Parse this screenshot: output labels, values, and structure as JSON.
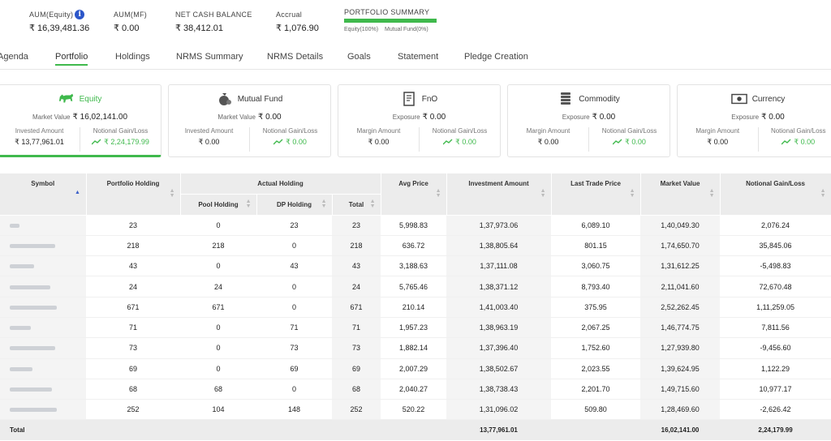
{
  "summary": {
    "aum_equity_label": "AUM(Equity)",
    "aum_equity_value": "₹ 16,39,481.36",
    "aum_mf_label": "AUM(MF)",
    "aum_mf_value": "₹ 0.00",
    "net_cash_label": "NET CASH BALANCE",
    "net_cash_value": "₹ 38,412.01",
    "accrual_label": "Accrual",
    "accrual_value": "₹ 1,076.90",
    "portfolio_summary_label": "PORTFOLIO SUMMARY",
    "equity_share_label": "Equity(100%)",
    "equity_share_pct": 100,
    "mf_share_label": "Mutual Fund(0%)"
  },
  "tabs": [
    "Agenda",
    "Portfolio",
    "Holdings",
    "NRMS Summary",
    "NRMS Details",
    "Goals",
    "Statement",
    "Pledge Creation"
  ],
  "active_tab": "Portfolio",
  "cards": [
    {
      "title": "Equity",
      "icon": "bull-icon",
      "main_label": "Market Value",
      "main_value": "₹ 16,02,141.00",
      "left_label": "Invested Amount",
      "left_value": "₹ 13,77,961.01",
      "right_label": "Notional Gain/Loss",
      "right_value": "₹ 2,24,179.99"
    },
    {
      "title": "Mutual Fund",
      "icon": "money-bag-icon",
      "main_label": "Market Value",
      "main_value": "₹ 0.00",
      "left_label": "Invested Amount",
      "left_value": "₹ 0.00",
      "right_label": "Notional Gain/Loss",
      "right_value": "₹ 0.00"
    },
    {
      "title": "FnO",
      "icon": "document-icon",
      "main_label": "Exposure",
      "main_value": "₹ 0.00",
      "left_label": "Margin Amount",
      "left_value": "₹ 0.00",
      "right_label": "Notional Gain/Loss",
      "right_value": "₹ 0.00"
    },
    {
      "title": "Commodity",
      "icon": "coin-stack-icon",
      "main_label": "Exposure",
      "main_value": "₹ 0.00",
      "left_label": "Margin Amount",
      "left_value": "₹ 0.00",
      "right_label": "Notional Gain/Loss",
      "right_value": "₹ 0.00"
    },
    {
      "title": "Currency",
      "icon": "banknote-icon",
      "main_label": "Exposure",
      "main_value": "₹ 0.00",
      "left_label": "Margin Amount",
      "left_value": "₹ 0.00",
      "right_label": "Notional Gain/Loss",
      "right_value": "₹ 0.00"
    }
  ],
  "table": {
    "headers": {
      "symbol": "Symbol",
      "portfolio_holding": "Portfolio Holding",
      "actual_holding": "Actual Holding",
      "pool_holding": "Pool Holding",
      "dp_holding": "DP Holding",
      "total": "Total",
      "avg_price": "Avg Price",
      "investment_amount": "Investment Amount",
      "last_trade_price": "Last Trade Price",
      "market_value": "Market Value",
      "notional_gain_loss": "Notional Gain/Loss"
    },
    "rows": [
      [
        "23",
        "0",
        "23",
        "23",
        "5,998.83",
        "1,37,973.06",
        "6,089.10",
        "1,40,049.30",
        "2,076.24"
      ],
      [
        "218",
        "218",
        "0",
        "218",
        "636.72",
        "1,38,805.64",
        "801.15",
        "1,74,650.70",
        "35,845.06"
      ],
      [
        "43",
        "0",
        "43",
        "43",
        "3,188.63",
        "1,37,111.08",
        "3,060.75",
        "1,31,612.25",
        "-5,498.83"
      ],
      [
        "24",
        "24",
        "0",
        "24",
        "5,765.46",
        "1,38,371.12",
        "8,793.40",
        "2,11,041.60",
        "72,670.48"
      ],
      [
        "671",
        "671",
        "0",
        "671",
        "210.14",
        "1,41,003.40",
        "375.95",
        "2,52,262.45",
        "1,11,259.05"
      ],
      [
        "71",
        "0",
        "71",
        "71",
        "1,957.23",
        "1,38,963.19",
        "2,067.25",
        "1,46,774.75",
        "7,811.56"
      ],
      [
        "73",
        "0",
        "73",
        "73",
        "1,882.14",
        "1,37,396.40",
        "1,752.60",
        "1,27,939.80",
        "-9,456.60"
      ],
      [
        "69",
        "0",
        "69",
        "69",
        "2,007.29",
        "1,38,502.67",
        "2,023.55",
        "1,39,624.95",
        "1,122.29"
      ],
      [
        "68",
        "68",
        "0",
        "68",
        "2,040.27",
        "1,38,738.43",
        "2,201.70",
        "1,49,715.60",
        "10,977.17"
      ],
      [
        "252",
        "104",
        "148",
        "252",
        "520.22",
        "1,31,096.02",
        "509.80",
        "1,28,469.60",
        "-2,626.42"
      ]
    ],
    "total": {
      "label": "Total",
      "investment_amount": "13,77,961.01",
      "market_value": "16,02,141.00",
      "notional_gain_loss": "2,24,179.99"
    }
  }
}
